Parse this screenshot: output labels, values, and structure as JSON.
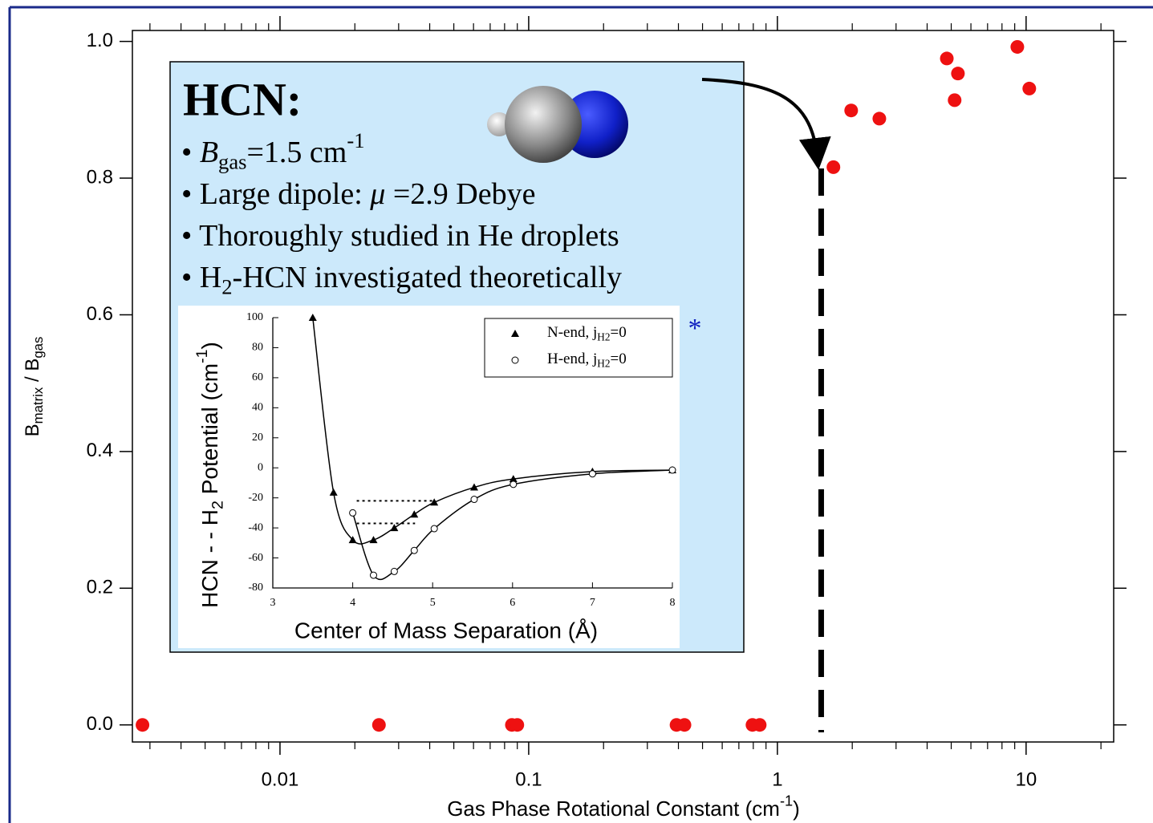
{
  "chart_data": [
    {
      "type": "scatter",
      "xlabel_parts": [
        "Gas Phase Rotational Constant (cm",
        "-1",
        ")"
      ],
      "ylabel_parts": [
        "B",
        "matrix",
        " / B",
        "gas"
      ],
      "x": [
        0.0028,
        0.025,
        0.0856,
        0.09,
        0.393,
        0.423,
        0.794,
        0.849,
        1.68,
        1.98,
        2.57,
        4.8,
        5.32,
        5.16,
        9.22,
        10.3
      ],
      "values": [
        0,
        0,
        0,
        0,
        0,
        0,
        0,
        0,
        0.816,
        0.899,
        0.887,
        0.975,
        0.953,
        0.914,
        0.992,
        0.931
      ],
      "color": "#ee1111",
      "log_x": true,
      "minor_xticks": true,
      "xlim": [
        0.00255,
        22.5
      ],
      "ylim": [
        -0.025,
        1.016
      ],
      "xticks": [
        {
          "value": 0.01,
          "label": "0.01"
        },
        {
          "value": 0.1,
          "label": "0.1"
        },
        1,
        10
      ],
      "yticks": [
        {
          "value": 0,
          "label": "0.0"
        },
        0.2,
        0.4,
        0.6,
        0.8,
        {
          "value": 1,
          "label": "1.0"
        }
      ],
      "reference_x": 1.5
    },
    {
      "type": "line",
      "xlabel": "Center of Mass Separation (Å)",
      "ylabel_parts": [
        "HCN - - H",
        "2",
        " Potential (cm",
        "-1",
        ")"
      ],
      "xlim": [
        3,
        8
      ],
      "ylim": [
        -80,
        100
      ],
      "xticks": [
        3,
        4,
        5,
        6,
        7,
        8
      ],
      "yticks": [
        -80,
        -60,
        -40,
        -20,
        0,
        20,
        40,
        60,
        80,
        100
      ],
      "legend": "upper right",
      "series": [
        {
          "name": [
            "N-end, j",
            "H2",
            "=0"
          ],
          "marker": "triangle",
          "color": "#000000",
          "x": [
            3.5,
            3.76,
            4.0,
            4.26,
            4.52,
            4.77,
            5.02,
            5.52,
            6.01,
            7.0,
            8.0
          ],
          "values": [
            100,
            -16.4,
            -48,
            -48,
            -40,
            -31,
            -23,
            -13,
            -7.4,
            -2.5,
            -1.5
          ]
        },
        {
          "name": [
            "H-end, j",
            "H2",
            "=0"
          ],
          "marker": "circle",
          "color": "#000000",
          "x": [
            4.0,
            4.26,
            4.52,
            4.77,
            5.02,
            5.52,
            6.01,
            7.0,
            8.0
          ],
          "values": [
            -30,
            -71.5,
            -69,
            -55,
            -40.5,
            -21,
            -11,
            -4,
            -1.5
          ]
        }
      ],
      "levels": [
        {
          "y": -22,
          "x": [
            4.05,
            5.0
          ]
        },
        {
          "y": -37,
          "x": [
            4.05,
            4.78
          ]
        }
      ]
    }
  ],
  "textbox": {
    "title": "HCN:",
    "bullets": [
      [
        "• ",
        "B",
        "gas",
        "=1.5 cm",
        "-1"
      ],
      [
        "• Large dipole: ",
        "μ",
        " =2.9 Debye"
      ],
      [
        "• Thoroughly studied in He droplets"
      ],
      [
        "• H",
        "2",
        "-HCN investigated theoretically"
      ]
    ],
    "note": "*"
  }
}
